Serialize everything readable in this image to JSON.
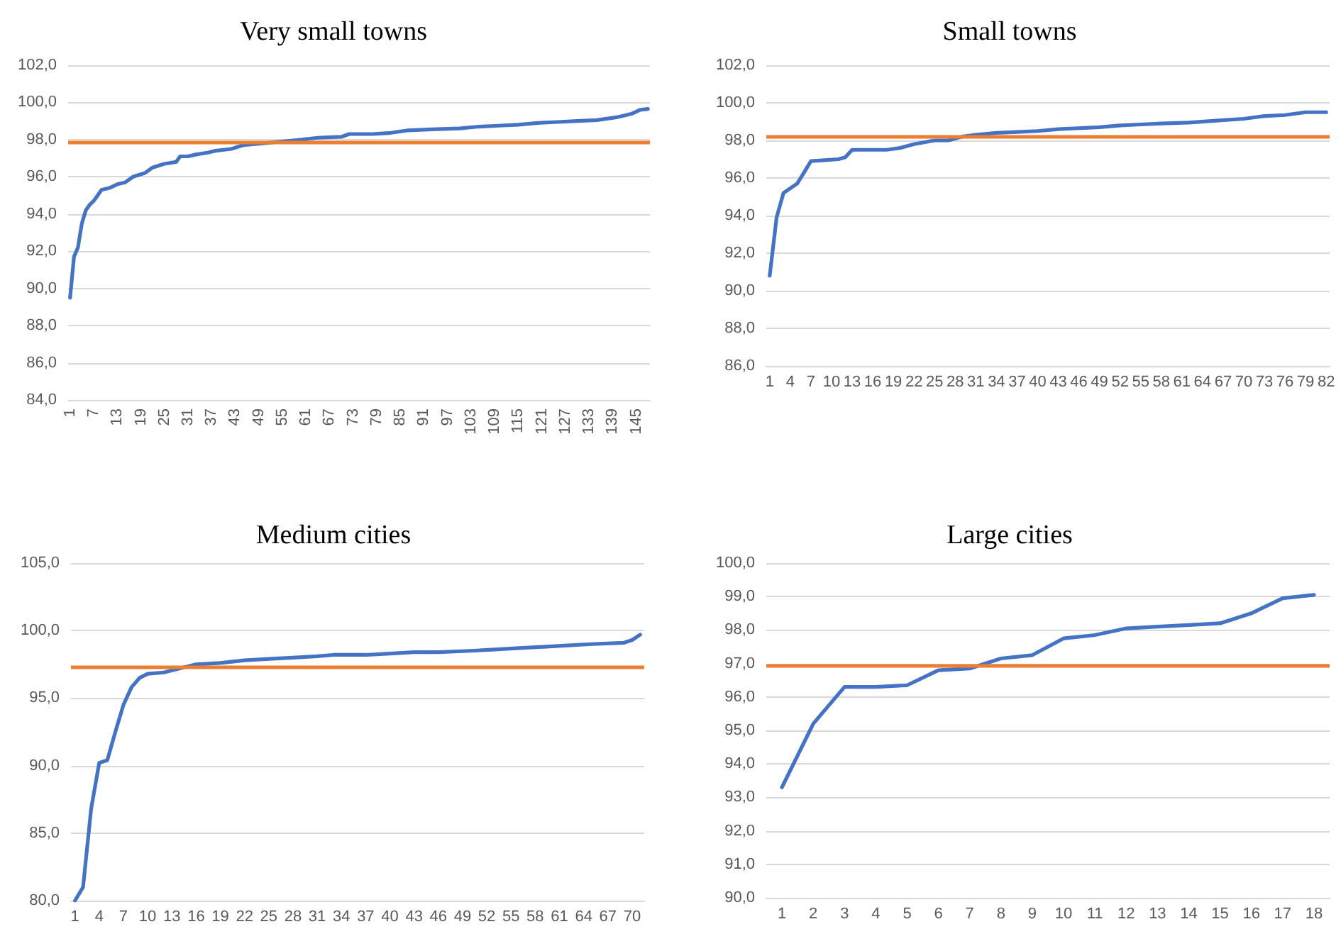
{
  "chart_data": [
    {
      "type": "line",
      "title": "Very small towns",
      "grid": "y",
      "marker": "none",
      "x": [
        1,
        2,
        3,
        4,
        5,
        6,
        7,
        9,
        11,
        13,
        15,
        17,
        20,
        22,
        25,
        28,
        29,
        31,
        33,
        36,
        38,
        42,
        45,
        50,
        55,
        60,
        64,
        70,
        72,
        78,
        82,
        87,
        93,
        100,
        105,
        110,
        115,
        120,
        125,
        130,
        135,
        140,
        144,
        146,
        148
      ],
      "series": [
        {
          "color": "#4472c4",
          "values": [
            89.5,
            91.7,
            92.2,
            93.5,
            94.2,
            94.5,
            94.7,
            95.3,
            95.4,
            95.6,
            95.7,
            96.0,
            96.2,
            96.5,
            96.7,
            96.8,
            97.1,
            97.1,
            97.2,
            97.3,
            97.4,
            97.5,
            97.7,
            97.8,
            97.9,
            98.0,
            98.1,
            98.15,
            98.3,
            98.3,
            98.35,
            98.5,
            98.55,
            98.6,
            98.7,
            98.75,
            98.8,
            98.9,
            98.95,
            99.0,
            99.05,
            99.2,
            99.4,
            99.6,
            99.65
          ]
        }
      ],
      "xlim": [
        0.5,
        148.5
      ],
      "xticks": [
        1,
        7,
        13,
        19,
        25,
        31,
        37,
        43,
        49,
        55,
        61,
        67,
        73,
        79,
        85,
        91,
        97,
        103,
        109,
        115,
        121,
        127,
        133,
        139,
        145
      ],
      "ylim": [
        84,
        102
      ],
      "yticks": [
        {
          "value": 84,
          "label": "84,0"
        },
        {
          "value": 86,
          "label": "86,0"
        },
        {
          "value": 88,
          "label": "88,0"
        },
        {
          "value": 90,
          "label": "90,0"
        },
        {
          "value": 92,
          "label": "92,0"
        },
        {
          "value": 94,
          "label": "94,0"
        },
        {
          "value": 96,
          "label": "96,0"
        },
        {
          "value": 98,
          "label": "98,0"
        },
        {
          "value": 100,
          "label": "100,0"
        },
        {
          "value": 102,
          "label": "102,0"
        }
      ],
      "ref_lines": [
        {
          "axis": "y",
          "value": 97.9,
          "color": "#ed7d31"
        }
      ]
    },
    {
      "type": "line",
      "title": "Small towns",
      "grid": "y",
      "marker": "none",
      "x": [
        1,
        2,
        3,
        5,
        6,
        7,
        9,
        11,
        12,
        13,
        15,
        18,
        20,
        22,
        25,
        27,
        29,
        31,
        34,
        37,
        40,
        43,
        46,
        49,
        52,
        55,
        58,
        62,
        66,
        70,
        73,
        76,
        79,
        82
      ],
      "series": [
        {
          "color": "#4472c4",
          "values": [
            90.8,
            93.9,
            95.2,
            95.7,
            96.3,
            96.9,
            96.95,
            97.0,
            97.1,
            97.5,
            97.5,
            97.5,
            97.6,
            97.8,
            98.0,
            98.0,
            98.2,
            98.3,
            98.4,
            98.45,
            98.5,
            98.6,
            98.65,
            98.7,
            98.8,
            98.85,
            98.9,
            98.95,
            99.05,
            99.15,
            99.3,
            99.35,
            99.5,
            99.5
          ]
        }
      ],
      "xlim": [
        0.5,
        82.5
      ],
      "xticks": [
        1,
        4,
        7,
        10,
        13,
        16,
        19,
        22,
        25,
        28,
        31,
        34,
        37,
        40,
        43,
        46,
        49,
        52,
        55,
        58,
        61,
        64,
        67,
        70,
        73,
        76,
        79,
        82
      ],
      "ylim": [
        86,
        102
      ],
      "yticks": [
        {
          "value": 86,
          "label": "86,0"
        },
        {
          "value": 88,
          "label": "88,0"
        },
        {
          "value": 90,
          "label": "90,0"
        },
        {
          "value": 92,
          "label": "92,0"
        },
        {
          "value": 94,
          "label": "94,0"
        },
        {
          "value": 96,
          "label": "96,0"
        },
        {
          "value": 98,
          "label": "98,0"
        },
        {
          "value": 100,
          "label": "100,0"
        },
        {
          "value": 102,
          "label": "102,0"
        }
      ],
      "ref_lines": [
        {
          "axis": "y",
          "value": 98.2,
          "color": "#ed7d31"
        }
      ]
    },
    {
      "type": "line",
      "title": "Medium cities",
      "grid": "y",
      "marker": "none",
      "x": [
        1,
        2,
        3,
        4,
        5,
        6,
        7,
        8,
        9,
        10,
        12,
        14,
        16,
        19,
        22,
        25,
        28,
        31,
        33,
        37,
        40,
        43,
        46,
        50,
        53,
        56,
        59,
        62,
        65,
        69,
        70,
        71
      ],
      "series": [
        {
          "color": "#4472c4",
          "values": [
            80.0,
            81.0,
            86.8,
            90.2,
            90.4,
            92.5,
            94.5,
            95.8,
            96.5,
            96.8,
            96.9,
            97.2,
            97.5,
            97.6,
            97.8,
            97.9,
            98.0,
            98.1,
            98.2,
            98.2,
            98.3,
            98.4,
            98.4,
            98.5,
            98.6,
            98.7,
            98.8,
            98.9,
            99.0,
            99.1,
            99.3,
            99.7
          ]
        }
      ],
      "xlim": [
        0.5,
        71.5
      ],
      "xticks": [
        1,
        4,
        7,
        10,
        13,
        16,
        19,
        22,
        25,
        28,
        31,
        34,
        37,
        40,
        43,
        46,
        49,
        52,
        55,
        58,
        61,
        64,
        67,
        70
      ],
      "ylim": [
        80,
        105
      ],
      "yticks": [
        {
          "value": 80,
          "label": "80,0"
        },
        {
          "value": 85,
          "label": "85,0"
        },
        {
          "value": 90,
          "label": "90,0"
        },
        {
          "value": 95,
          "label": "95,0"
        },
        {
          "value": 100,
          "label": "100,0"
        },
        {
          "value": 105,
          "label": "105,0"
        }
      ],
      "ref_lines": [
        {
          "axis": "y",
          "value": 97.3,
          "color": "#ed7d31"
        }
      ]
    },
    {
      "type": "line",
      "title": "Large cities",
      "grid": "y",
      "marker": "none",
      "x": [
        1,
        2,
        3,
        4,
        5,
        6,
        7,
        8,
        9,
        10,
        11,
        12,
        13,
        14,
        15,
        16,
        17,
        18
      ],
      "series": [
        {
          "color": "#4472c4",
          "values": [
            93.3,
            95.2,
            96.3,
            96.3,
            96.35,
            96.8,
            96.85,
            97.15,
            97.25,
            97.75,
            97.85,
            98.05,
            98.1,
            98.15,
            98.2,
            98.5,
            98.95,
            99.05
          ]
        }
      ],
      "xlim": [
        0.5,
        18.5
      ],
      "xticks": [
        1,
        2,
        3,
        4,
        5,
        6,
        7,
        8,
        9,
        10,
        11,
        12,
        13,
        14,
        15,
        16,
        17,
        18
      ],
      "ylim": [
        90,
        100
      ],
      "yticks": [
        {
          "value": 90,
          "label": "90,0"
        },
        {
          "value": 91,
          "label": "91,0"
        },
        {
          "value": 92,
          "label": "92,0"
        },
        {
          "value": 93,
          "label": "93,0"
        },
        {
          "value": 94,
          "label": "94,0"
        },
        {
          "value": 95,
          "label": "95,0"
        },
        {
          "value": 96,
          "label": "96,0"
        },
        {
          "value": 97,
          "label": "97,0"
        },
        {
          "value": 98,
          "label": "98,0"
        },
        {
          "value": 99,
          "label": "99,0"
        },
        {
          "value": 100,
          "label": "100,0"
        }
      ],
      "ref_lines": [
        {
          "axis": "y",
          "value": 96.95,
          "color": "#ed7d31"
        }
      ]
    }
  ]
}
